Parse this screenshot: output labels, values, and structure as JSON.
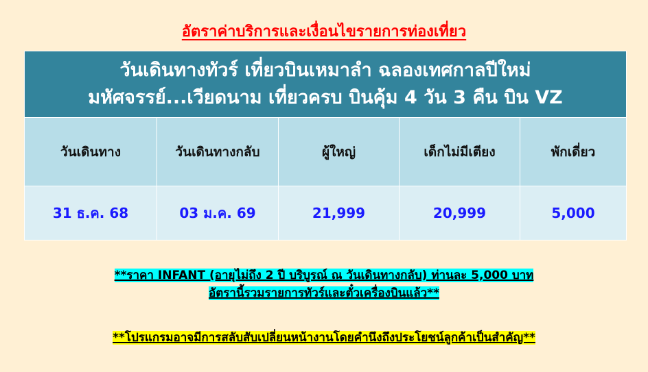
{
  "title": "อัตราค่าบริการและเงื่อนไขรายการท่องเที่ยว",
  "tour_title_line1": "วันเดินทางทัวร์ เที่ยวบินเหมาลำ ฉลองเทศกาลปีใหม่",
  "tour_title_line2": "มหัศจรรย์...เวียดนาม เที่ยวครบ บินคุ้ม 4 วัน 3 คืน บิน VZ",
  "headers": [
    "วันเดินทาง",
    "วันเดินทางกลับ",
    "ผู้ใหญ่",
    "เด็กไม่มีเตียง",
    "พักเดี่ยว"
  ],
  "rows": [
    [
      "31 ธ.ค. 68",
      "03 ม.ค. 69",
      "21,999",
      "20,999",
      "5,000"
    ]
  ],
  "note_infant_line1": "**ราคา INFANT (อายุไม่ถึง 2 ปี บริบูรณ์ ณ วันเดินทางกลับ) ท่านละ 5,000 บาท",
  "note_infant_line2": "อัตรานี้รวมรายการทัวร์และตั๋วเครื่องบินแล้ว**",
  "note_program": "**โปรแกรมอาจมีการสลับสับเปลี่ยนหน้างานโดยคำนึงถึงประโยชน์ลูกค้าเป็นสำคัญ**",
  "colors": {
    "title": "#ff0000",
    "tour_header": "#33849c",
    "column_header": "#b7dde8",
    "data_row": "#dbeef4",
    "data_text": "#1a1aff",
    "highlight_cyan": "#00ffff",
    "highlight_yellow": "#ffff00",
    "background": "#fff0d4"
  }
}
